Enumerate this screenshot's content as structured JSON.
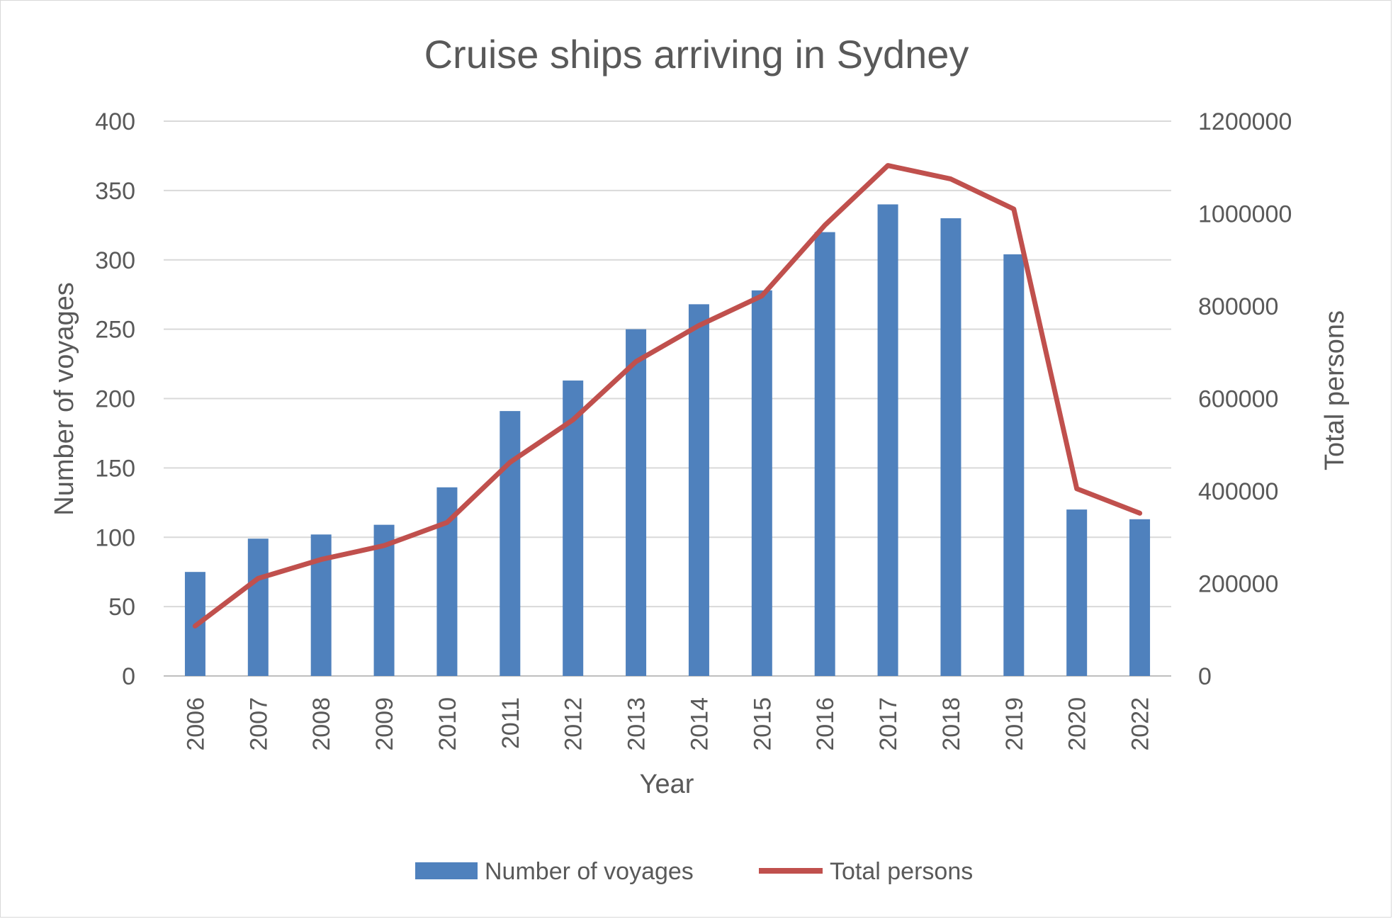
{
  "chart_data": {
    "type": "bar",
    "title": "Cruise ships arriving in Sydney",
    "xlabel": "Year",
    "ylabel": "Number of voyages",
    "y2label": "Total persons",
    "categories": [
      "2006",
      "2007",
      "2008",
      "2009",
      "2010",
      "2011",
      "2012",
      "2013",
      "2014",
      "2015",
      "2016",
      "2017",
      "2018",
      "2019",
      "2020",
      "2022"
    ],
    "ylim": [
      0,
      400
    ],
    "yticks": [
      "0",
      "50",
      "100",
      "150",
      "200",
      "250",
      "300",
      "350",
      "400"
    ],
    "y2lim": [
      0,
      1200000
    ],
    "y2ticks": [
      "0",
      "200000",
      "400000",
      "600000",
      "800000",
      "1000000",
      "1200000"
    ],
    "grid": true,
    "legend_position": "bottom",
    "series": [
      {
        "name": "Number of voyages",
        "type": "bar",
        "axis": "left",
        "color": "#4f81bd",
        "values": [
          75,
          99,
          102,
          109,
          136,
          191,
          213,
          250,
          268,
          278,
          320,
          340,
          330,
          304,
          120,
          113
        ]
      },
      {
        "name": "Total persons",
        "type": "line",
        "axis": "right",
        "color": "#c0504d",
        "values": [
          108000,
          211000,
          252000,
          282000,
          332000,
          462000,
          554000,
          680000,
          758000,
          822000,
          975000,
          1104000,
          1075000,
          1010000,
          405000,
          352000
        ]
      }
    ]
  }
}
